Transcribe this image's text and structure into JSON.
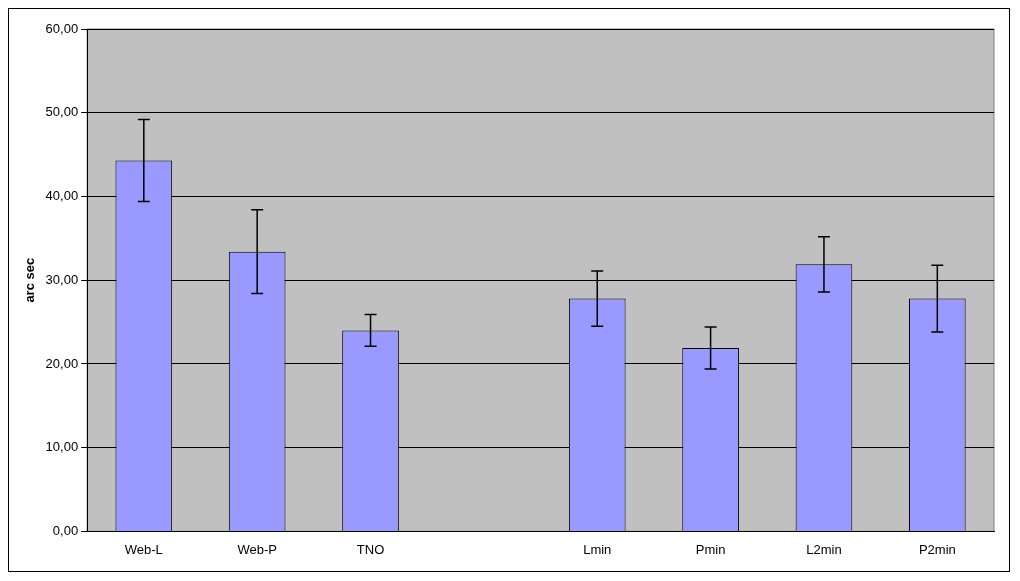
{
  "chart_data": {
    "type": "bar",
    "ylabel": "arc sec",
    "categories": [
      "Web-L",
      "Web-P",
      "TNO",
      null,
      "Lmin",
      "Pmin",
      "L2min",
      "P2min"
    ],
    "values": [
      44.3,
      33.4,
      24.0,
      null,
      27.8,
      21.9,
      31.9,
      27.8
    ],
    "errors": [
      4.9,
      5.0,
      1.9,
      null,
      3.3,
      2.5,
      3.3,
      4.0
    ],
    "color": "#9999ff",
    "ylim": [
      0,
      60
    ],
    "yticks": [
      {
        "value": 0,
        "label": "0,00"
      },
      {
        "value": 10,
        "label": "10,00"
      },
      {
        "value": 20,
        "label": "20,00"
      },
      {
        "value": 30,
        "label": "30,00"
      },
      {
        "value": 40,
        "label": "40,00"
      },
      {
        "value": 50,
        "label": "50,00"
      },
      {
        "value": 60,
        "label": "60,00"
      }
    ],
    "grid": "y",
    "legend": false
  }
}
